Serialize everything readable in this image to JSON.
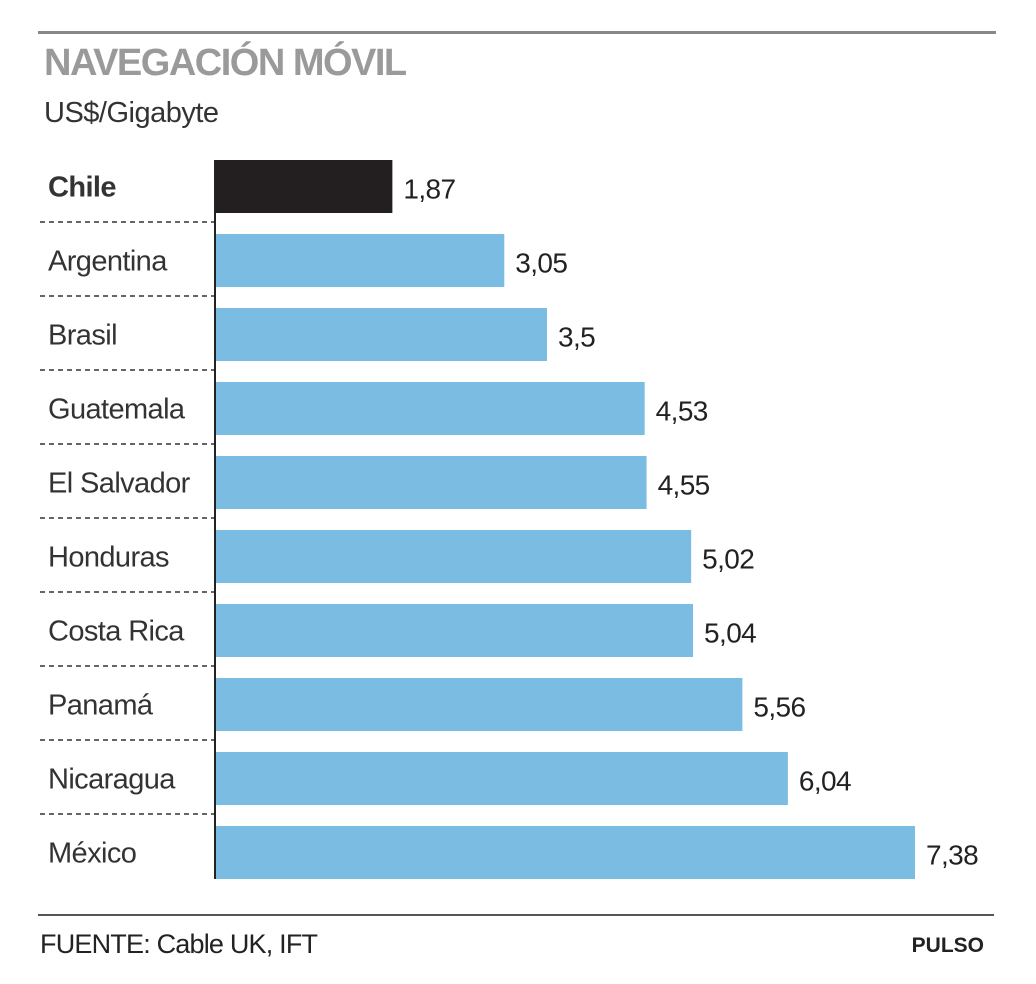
{
  "header": {
    "title": "NAVEGACIÓN MÓVIL",
    "subtitle": "US$/Gigabyte"
  },
  "chart_data": {
    "type": "bar",
    "orientation": "horizontal",
    "title": "NAVEGACIÓN MÓVIL",
    "ylabel": "US$/Gigabyte",
    "xlabel": "",
    "categories": [
      "Chile",
      "Argentina",
      "Brasil",
      "Guatemala",
      "El Salvador",
      "Honduras",
      "Costa Rica",
      "Panamá",
      "Nicaragua",
      "México"
    ],
    "values": [
      1.87,
      3.05,
      3.5,
      4.53,
      4.55,
      5.02,
      5.04,
      5.56,
      6.04,
      7.38
    ],
    "value_labels": [
      "1,87",
      "3,05",
      "3,5",
      "4,53",
      "4,55",
      "5,02",
      "5,04",
      "5,56",
      "6,04",
      "7,38"
    ],
    "highlight": "Chile",
    "xlim": [
      0,
      7.38
    ],
    "grid": false,
    "colors": {
      "highlight": "#231f20",
      "default": "#7bbde2"
    }
  },
  "footer": {
    "source": "FUENTE: Cable UK, IFT",
    "brand": "PULSO"
  }
}
